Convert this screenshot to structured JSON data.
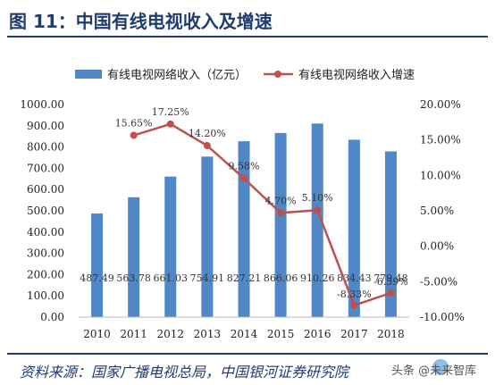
{
  "header": {
    "title": "图 11：中国有线电视收入及增速"
  },
  "chart_data": {
    "type": "bar+line",
    "categories": [
      "2010",
      "2011",
      "2012",
      "2013",
      "2014",
      "2015",
      "2016",
      "2017",
      "2018"
    ],
    "series": [
      {
        "name": "有线电视网络收入（亿元）",
        "type": "bar",
        "axis": "left",
        "values": [
          487.49,
          563.78,
          661.03,
          754.91,
          827.21,
          866.06,
          910.26,
          834.43,
          779.48
        ],
        "labels": [
          "487.49",
          "563.78",
          "661.03",
          "754.91",
          "827.21",
          "866.06",
          "910.26",
          "834.43",
          "779.48"
        ]
      },
      {
        "name": "有线电视网络收入增速",
        "type": "line",
        "axis": "right",
        "values": [
          null,
          15.65,
          17.25,
          14.2,
          9.58,
          4.7,
          5.1,
          -8.33,
          -6.59
        ],
        "labels": [
          "",
          "15.65%",
          "17.25%",
          "14.20%",
          "9.58%",
          "4.70%",
          "5.10%",
          "-8.33%",
          "-6.59%"
        ]
      }
    ],
    "left_axis": {
      "ylim": [
        0,
        1000
      ],
      "ticks": [
        "0.00",
        "100.00",
        "200.00",
        "300.00",
        "400.00",
        "500.00",
        "600.00",
        "700.00",
        "800.00",
        "900.00",
        "1000.00"
      ]
    },
    "right_axis": {
      "ylim": [
        -10,
        20
      ],
      "ticks": [
        "-10.00%",
        "-5.00%",
        "0.00%",
        "5.00%",
        "10.00%",
        "15.00%",
        "20.00%"
      ]
    },
    "legend_position": "top",
    "grid": false,
    "colors": {
      "bar": "#4f87c7",
      "line": "#c0504d"
    }
  },
  "footer": {
    "source": "资料来源：国家广播电视总局，中国银河证券研究院",
    "watermark": "头条 @未来智库"
  }
}
